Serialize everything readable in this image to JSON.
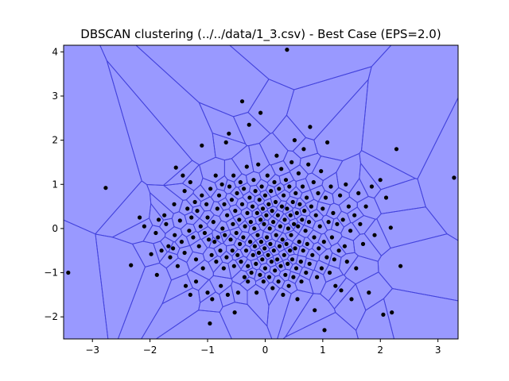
{
  "chart_data": {
    "type": "scatter",
    "title": "DBSCAN clustering (../../data/1_3.csv) - Best Case (EPS=2.0)",
    "xlabel": "",
    "ylabel": "",
    "xlim": [
      -3.5,
      3.35
    ],
    "ylim": [
      -2.5,
      4.15
    ],
    "xticks": [
      -3,
      -2,
      -1,
      0,
      1,
      2,
      3
    ],
    "yticks": [
      -2,
      -1,
      0,
      1,
      2,
      3,
      4
    ],
    "grid": false,
    "legend": "none",
    "background_color": "#9999ff",
    "edge_color": "#4444dd",
    "point_color": "#000000",
    "clusters": 1,
    "series": [
      {
        "values": [
          [
            -3.42,
            -1.0
          ],
          [
            -2.77,
            0.92
          ],
          [
            -2.33,
            -0.83
          ],
          [
            -2.18,
            0.25
          ],
          [
            -2.1,
            0.05
          ],
          [
            -1.98,
            -0.58
          ],
          [
            -1.9,
            -0.1
          ],
          [
            -1.88,
            -1.05
          ],
          [
            -1.85,
            0.2
          ],
          [
            -1.8,
            -0.5
          ],
          [
            -1.75,
            0.3
          ],
          [
            -1.72,
            0.1
          ],
          [
            -1.68,
            -0.4
          ],
          [
            -1.65,
            -0.65
          ],
          [
            -1.6,
            -0.45
          ],
          [
            -1.58,
            0.55
          ],
          [
            -1.57,
            -0.15
          ],
          [
            -1.55,
            1.38
          ],
          [
            -1.52,
            -0.85
          ],
          [
            -1.48,
            0.18
          ],
          [
            -1.45,
            -0.3
          ],
          [
            -1.43,
            1.2
          ],
          [
            -1.4,
            0.85
          ],
          [
            -1.4,
            -0.55
          ],
          [
            -1.38,
            -1.3
          ],
          [
            -1.35,
            0.45
          ],
          [
            -1.32,
            -0.05
          ],
          [
            -1.3,
            1.05
          ],
          [
            -1.3,
            -1.5
          ],
          [
            -1.28,
            0.25
          ],
          [
            -1.25,
            -0.2
          ],
          [
            -1.22,
            0.6
          ],
          [
            -1.2,
            -0.7
          ],
          [
            -1.2,
            -1.2
          ],
          [
            -1.18,
            0.4
          ],
          [
            -1.15,
            -0.4
          ],
          [
            -1.12,
            0.05
          ],
          [
            -1.1,
            0.75
          ],
          [
            -1.1,
            1.88
          ],
          [
            -1.08,
            -0.9
          ],
          [
            -1.05,
            -0.1
          ],
          [
            -1.02,
            0.55
          ],
          [
            -1.0,
            -1.45
          ],
          [
            -1.0,
            0.25
          ],
          [
            -0.98,
            -0.25
          ],
          [
            -0.96,
            -2.15
          ],
          [
            -0.95,
            0.9
          ],
          [
            -0.93,
            -0.6
          ],
          [
            -0.92,
            -1.6
          ],
          [
            -0.9,
            0.15
          ],
          [
            -0.88,
            -0.3
          ],
          [
            -0.86,
            1.2
          ],
          [
            -0.85,
            -0.75
          ],
          [
            -0.83,
            0.45
          ],
          [
            -0.82,
            -0.2
          ],
          [
            -0.8,
            0.75
          ],
          [
            -0.78,
            -0.5
          ],
          [
            -0.77,
            -1.3
          ],
          [
            -0.75,
            1.0
          ],
          [
            -0.74,
            0.0
          ],
          [
            -0.72,
            -0.9
          ],
          [
            -0.71,
            0.55
          ],
          [
            -0.7,
            -0.15
          ],
          [
            -0.68,
            1.95
          ],
          [
            -0.67,
            -0.65
          ],
          [
            -0.66,
            0.3
          ],
          [
            -0.65,
            -1.5
          ],
          [
            -0.63,
            2.15
          ],
          [
            -0.62,
            0.95
          ],
          [
            -0.6,
            -0.25
          ],
          [
            -0.58,
            0.65
          ],
          [
            -0.57,
            -0.5
          ],
          [
            -0.56,
            0.1
          ],
          [
            -0.55,
            1.2
          ],
          [
            -0.54,
            -0.85
          ],
          [
            -0.53,
            -1.9
          ],
          [
            -0.52,
            0.4
          ],
          [
            -0.5,
            -0.1
          ],
          [
            -0.49,
            0.8
          ],
          [
            -0.48,
            -0.6
          ],
          [
            -0.47,
            -1.45
          ],
          [
            -0.45,
            0.2
          ],
          [
            -0.44,
            -0.35
          ],
          [
            -0.43,
            1.05
          ],
          [
            -0.42,
            -0.75
          ],
          [
            -0.4,
            0.55
          ],
          [
            -0.38,
            -0.2
          ],
          [
            -0.37,
            0.9
          ],
          [
            -0.36,
            -1.1
          ],
          [
            -0.35,
            0.05
          ],
          [
            -0.33,
            -0.5
          ],
          [
            -0.32,
            1.4
          ],
          [
            -0.31,
            0.35
          ],
          [
            -0.3,
            -0.85
          ],
          [
            -0.3,
            -1.2
          ],
          [
            -0.28,
            2.35
          ],
          [
            -0.27,
            0.7
          ],
          [
            -0.26,
            -0.3
          ],
          [
            -0.25,
            0.15
          ],
          [
            -0.24,
            -1.0
          ],
          [
            -0.22,
            0.5
          ],
          [
            -0.21,
            -0.6
          ],
          [
            -0.2,
            1.1
          ],
          [
            -0.19,
            0.0
          ],
          [
            -0.18,
            -0.4
          ],
          [
            -0.17,
            0.85
          ],
          [
            -0.16,
            -0.8
          ],
          [
            -0.15,
            -1.45
          ],
          [
            -0.14,
            0.35
          ],
          [
            -0.13,
            -0.15
          ],
          [
            -0.12,
            1.45
          ],
          [
            -0.11,
            -0.55
          ],
          [
            -0.1,
            0.65
          ],
          [
            -0.09,
            -1.05
          ],
          [
            -0.08,
            0.2
          ],
          [
            -0.07,
            -0.3
          ],
          [
            -0.06,
            0.95
          ],
          [
            -0.05,
            -0.7
          ],
          [
            -0.04,
            0.45
          ],
          [
            -0.03,
            -1.2
          ],
          [
            -0.02,
            0.1
          ],
          [
            -0.01,
            -0.45
          ],
          [
            0.0,
            0.75
          ],
          [
            0.0,
            -0.9
          ],
          [
            0.02,
            0.3
          ],
          [
            0.03,
            -0.2
          ],
          [
            0.04,
            1.2
          ],
          [
            0.05,
            -0.6
          ],
          [
            0.06,
            0.55
          ],
          [
            0.07,
            -1.1
          ],
          [
            0.08,
            0.0
          ],
          [
            0.09,
            -0.35
          ],
          [
            0.1,
            0.85
          ],
          [
            0.11,
            -0.75
          ],
          [
            0.12,
            0.4
          ],
          [
            0.13,
            -1.35
          ],
          [
            0.14,
            0.15
          ],
          [
            0.15,
            -0.5
          ],
          [
            0.16,
            1.05
          ],
          [
            0.17,
            -0.95
          ],
          [
            0.18,
            0.6
          ],
          [
            0.19,
            -0.15
          ],
          [
            0.2,
            1.65
          ],
          [
            0.21,
            -0.7
          ],
          [
            0.22,
            0.3
          ],
          [
            0.23,
            -1.2
          ],
          [
            0.24,
            0.9
          ],
          [
            0.25,
            -0.4
          ],
          [
            0.26,
            0.05
          ],
          [
            0.27,
            -0.85
          ],
          [
            0.28,
            1.35
          ],
          [
            0.29,
            0.5
          ],
          [
            0.3,
            -0.25
          ],
          [
            0.31,
            -1.5
          ],
          [
            0.32,
            0.75
          ],
          [
            0.33,
            -0.6
          ],
          [
            0.34,
            0.2
          ],
          [
            0.35,
            -1.05
          ],
          [
            0.36,
            1.1
          ],
          [
            0.37,
            -0.35
          ],
          [
            0.38,
            0.45
          ],
          [
            0.39,
            -0.8
          ],
          [
            0.4,
            0.0
          ],
          [
            0.41,
            -1.3
          ],
          [
            0.42,
            0.95
          ],
          [
            0.43,
            -0.5
          ],
          [
            0.44,
            0.3
          ],
          [
            0.45,
            -0.15
          ],
          [
            0.46,
            1.5
          ],
          [
            0.47,
            -0.7
          ],
          [
            0.48,
            0.6
          ],
          [
            0.49,
            -1.1
          ],
          [
            0.5,
            0.1
          ],
          [
            0.51,
            2.0
          ],
          [
            0.52,
            -0.45
          ],
          [
            0.53,
            0.8
          ],
          [
            0.54,
            -0.9
          ],
          [
            0.55,
            0.35
          ],
          [
            0.56,
            -1.6
          ],
          [
            0.57,
            0.05
          ],
          [
            0.58,
            1.25
          ],
          [
            0.59,
            -0.3
          ],
          [
            0.6,
            0.55
          ],
          [
            0.62,
            -0.75
          ],
          [
            0.63,
            -1.2
          ],
          [
            0.64,
            0.2
          ],
          [
            0.65,
            0.95
          ],
          [
            0.66,
            -0.5
          ],
          [
            0.67,
            1.8
          ],
          [
            0.68,
            0.4
          ],
          [
            0.7,
            -0.05
          ],
          [
            0.71,
            -1.0
          ],
          [
            0.72,
            0.7
          ],
          [
            0.73,
            -0.35
          ],
          [
            0.75,
            1.45
          ],
          [
            0.76,
            0.15
          ],
          [
            0.77,
            -0.8
          ],
          [
            0.78,
            2.3
          ],
          [
            0.8,
            0.5
          ],
          [
            0.82,
            -0.6
          ],
          [
            0.84,
            1.05
          ],
          [
            0.85,
            -0.2
          ],
          [
            0.86,
            -1.85
          ],
          [
            0.88,
            0.3
          ],
          [
            0.9,
            -1.1
          ],
          [
            0.92,
            0.8
          ],
          [
            0.93,
            -0.45
          ],
          [
            0.95,
            0.05
          ],
          [
            0.97,
            1.3
          ],
          [
            0.98,
            -0.9
          ],
          [
            1.0,
            0.45
          ],
          [
            1.02,
            -0.3
          ],
          [
            1.03,
            -2.3
          ],
          [
            1.05,
            0.7
          ],
          [
            1.07,
            -0.65
          ],
          [
            1.08,
            1.95
          ],
          [
            1.1,
            0.15
          ],
          [
            1.12,
            -1.0
          ],
          [
            1.14,
            0.95
          ],
          [
            1.16,
            -0.2
          ],
          [
            1.18,
            0.35
          ],
          [
            1.2,
            -0.7
          ],
          [
            1.22,
            -1.3
          ],
          [
            1.25,
            0.1
          ],
          [
            1.28,
            -0.5
          ],
          [
            1.3,
            0.75
          ],
          [
            1.32,
            -1.4
          ],
          [
            1.35,
            0.2
          ],
          [
            1.38,
            -0.4
          ],
          [
            1.4,
            1.0
          ],
          [
            1.42,
            -0.75
          ],
          [
            1.45,
            0.5
          ],
          [
            1.48,
            -0.05
          ],
          [
            1.5,
            -1.6
          ],
          [
            1.55,
            0.3
          ],
          [
            1.58,
            -0.9
          ],
          [
            1.62,
            0.8
          ],
          [
            1.65,
            0.1
          ],
          [
            1.7,
            -0.35
          ],
          [
            1.75,
            0.5
          ],
          [
            1.8,
            -1.45
          ],
          [
            1.85,
            0.95
          ],
          [
            1.9,
            -0.15
          ],
          [
            2.0,
            1.1
          ],
          [
            2.05,
            -1.95
          ],
          [
            2.1,
            0.7
          ],
          [
            2.2,
            -1.9
          ],
          [
            2.28,
            1.8
          ],
          [
            2.35,
            -0.85
          ],
          [
            3.28,
            1.15
          ],
          [
            0.38,
            4.05
          ],
          [
            -0.4,
            2.88
          ],
          [
            -0.08,
            2.62
          ],
          [
            2.18,
            0.02
          ]
        ]
      }
    ]
  }
}
